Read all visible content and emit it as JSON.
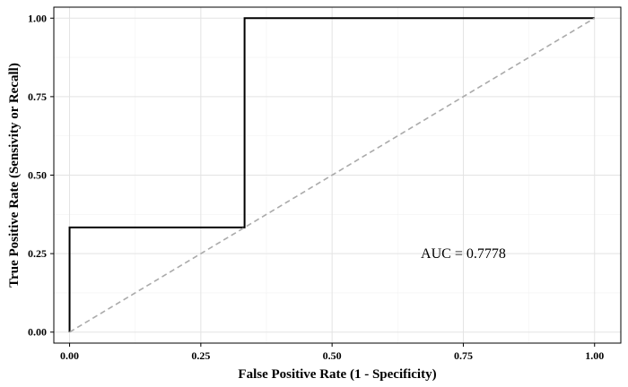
{
  "chart_data": {
    "type": "line",
    "title": "",
    "xlabel": "False Positive Rate (1 - Specificity)",
    "ylabel": "True Positive Rate (Sensivity or Recall)",
    "xlim": [
      -0.03,
      1.05
    ],
    "ylim": [
      -0.035,
      1.035
    ],
    "x_ticks": [
      0,
      0.25,
      0.5,
      0.75,
      1
    ],
    "x_tick_labels": [
      "0.00",
      "0.25",
      "0.50",
      "0.75",
      "1.00"
    ],
    "y_ticks": [
      0,
      0.25,
      0.5,
      0.75,
      1
    ],
    "y_tick_labels": [
      "0.00",
      "0.25",
      "0.50",
      "0.75",
      "1.00"
    ],
    "grid": true,
    "legend": "none",
    "series": [
      {
        "x": [
          0,
          0,
          0.3333,
          0.3333,
          1
        ],
        "y": [
          0,
          0.3333,
          0.3333,
          1,
          1
        ],
        "color": "#000000",
        "style": "solid"
      },
      {
        "x": [
          0,
          1
        ],
        "y": [
          0,
          1
        ],
        "color": "#aaaaaa",
        "style": "dashed"
      }
    ],
    "annotations": [
      {
        "text": "AUC = 0.7778",
        "x": 0.75,
        "y": 0.25
      }
    ]
  }
}
